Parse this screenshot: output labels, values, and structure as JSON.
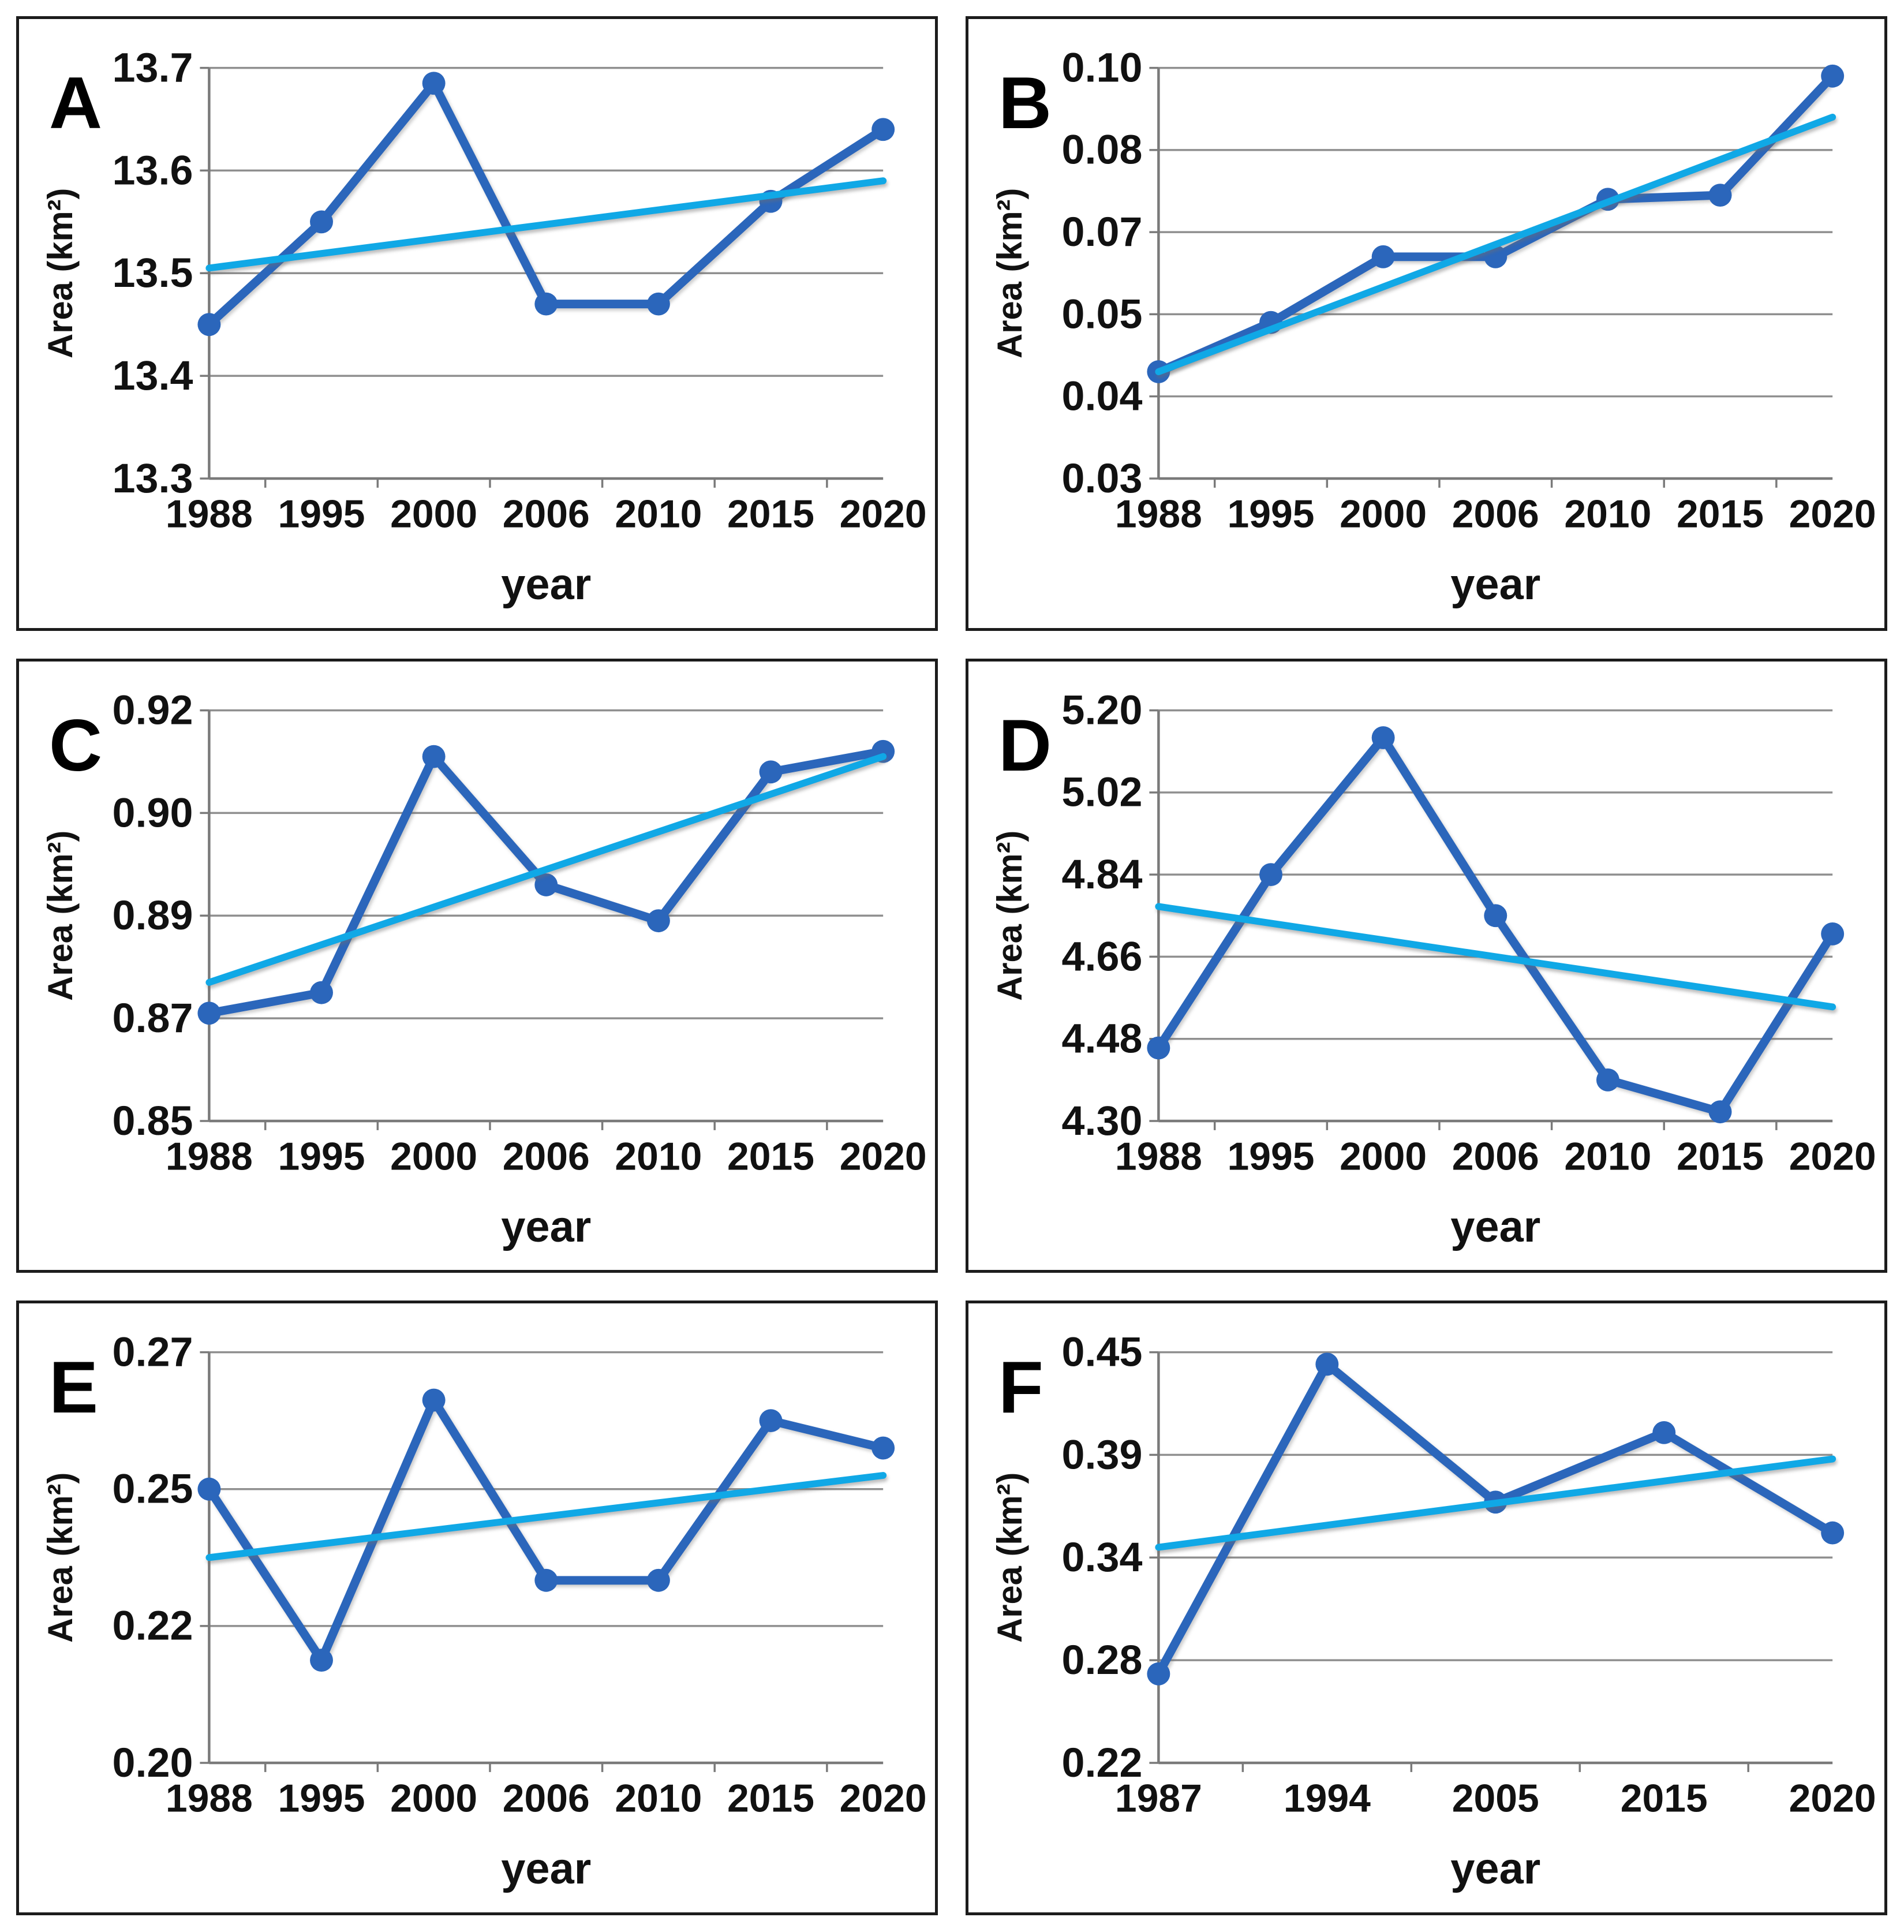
{
  "figure": {
    "description": "Six-panel line chart figure of lake surface area change over time with linear trend lines",
    "colors": {
      "series": "#2b66bb",
      "trend": "#10a8e6",
      "gridline": "#8f8f8f",
      "axis": "#7a7a7a",
      "border": "#1c1c1c",
      "text": "#111111",
      "background": "#ffffff"
    }
  },
  "chart_data": [
    {
      "panel": "A",
      "type": "line",
      "title": "",
      "xlabel": "year",
      "ylabel": "Area (km²)",
      "x": [
        "1988",
        "1995",
        "2000",
        "2006",
        "2010",
        "2015",
        "2020"
      ],
      "series": [
        {
          "name": "area",
          "values": [
            13.45,
            13.55,
            13.685,
            13.47,
            13.47,
            13.57,
            13.64
          ]
        },
        {
          "name": "linear-trend",
          "trend": [
            13.505,
            13.59
          ]
        }
      ],
      "yticks": [
        "13.3",
        "13.4",
        "13.5",
        "13.6",
        "13.7"
      ],
      "ylim": [
        13.3,
        13.7
      ],
      "grid": true,
      "legend": "none"
    },
    {
      "panel": "B",
      "type": "line",
      "title": "",
      "xlabel": "year",
      "ylabel": "Area (km²)",
      "x": [
        "1988",
        "1995",
        "2000",
        "2006",
        "2010",
        "2015",
        "2020"
      ],
      "series": [
        {
          "name": "area",
          "values": [
            0.043,
            0.049,
            0.064,
            0.064,
            0.074,
            0.0745,
            0.098
          ]
        },
        {
          "name": "linear-trend",
          "trend": [
            0.043,
            0.088
          ]
        }
      ],
      "yticks": [
        "0.03",
        "0.04",
        "0.05",
        "0.07",
        "0.08",
        "0.10"
      ],
      "ylim": [
        0.03,
        0.1
      ],
      "grid": true,
      "legend": "none"
    },
    {
      "panel": "C",
      "type": "line",
      "title": "",
      "xlabel": "year",
      "ylabel": "Area (km²)",
      "x": [
        "1988",
        "1995",
        "2000",
        "2006",
        "2010",
        "2015",
        "2020"
      ],
      "series": [
        {
          "name": "area",
          "values": [
            0.871,
            0.875,
            0.911,
            0.893,
            0.889,
            0.908,
            0.912
          ]
        },
        {
          "name": "linear-trend",
          "trend": [
            0.877,
            0.911
          ]
        }
      ],
      "yticks": [
        "0.85",
        "0.87",
        "0.89",
        "0.90",
        "0.92"
      ],
      "ylim": [
        0.85,
        0.92
      ],
      "grid": true,
      "legend": "none"
    },
    {
      "panel": "D",
      "type": "line",
      "title": "",
      "xlabel": "year",
      "ylabel": "Area (km²)",
      "x": [
        "1988",
        "1995",
        "2000",
        "2006",
        "2010",
        "2015",
        "2020"
      ],
      "series": [
        {
          "name": "area",
          "values": [
            4.46,
            4.84,
            5.14,
            4.75,
            4.39,
            4.32,
            4.71
          ]
        },
        {
          "name": "linear-trend",
          "trend": [
            4.77,
            4.55
          ]
        }
      ],
      "yticks": [
        "4.30",
        "4.48",
        "4.66",
        "4.84",
        "5.02",
        "5.20"
      ],
      "ylim": [
        4.3,
        5.2
      ],
      "grid": true,
      "legend": "none"
    },
    {
      "panel": "E",
      "type": "line",
      "title": "",
      "xlabel": "year",
      "ylabel": "Area (km²)",
      "x": [
        "1988",
        "1995",
        "2000",
        "2006",
        "2010",
        "2015",
        "2020"
      ],
      "series": [
        {
          "name": "area",
          "values": [
            0.25,
            0.215,
            0.263,
            0.23,
            0.23,
            0.26,
            0.256
          ]
        },
        {
          "name": "linear-trend",
          "trend": [
            0.235,
            0.252
          ]
        }
      ],
      "yticks": [
        "0.20",
        "0.22",
        "0.25",
        "0.27"
      ],
      "ylim": [
        0.2,
        0.27
      ],
      "grid": true,
      "legend": "none"
    },
    {
      "panel": "F",
      "type": "line",
      "title": "",
      "xlabel": "year",
      "ylabel": "Area (km²)",
      "x": [
        "1987",
        "1994",
        "2005",
        "2015",
        "2020"
      ],
      "series": [
        {
          "name": "area",
          "values": [
            0.272,
            0.443,
            0.367,
            0.403,
            0.352
          ]
        },
        {
          "name": "linear-trend",
          "trend": [
            0.345,
            0.388
          ]
        }
      ],
      "yticks": [
        "0.22",
        "0.28",
        "0.34",
        "0.39",
        "0.45"
      ],
      "ylim": [
        0.22,
        0.45
      ],
      "grid": true,
      "legend": "none"
    }
  ]
}
